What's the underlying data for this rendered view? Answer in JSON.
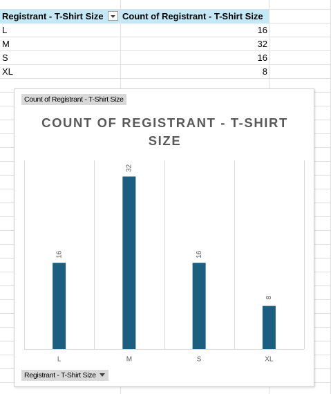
{
  "table": {
    "headers": [
      "Registrant - T-Shirt Size",
      "Count of Registrant - T-Shirt Size"
    ],
    "rows": [
      [
        "L",
        16
      ],
      [
        "M",
        32
      ],
      [
        "S",
        16
      ],
      [
        "XL",
        8
      ]
    ]
  },
  "chart_data": {
    "type": "bar",
    "title": "COUNT OF REGISTRANT - T-SHIRT SIZE",
    "value_field_button": "Count of Registrant - T-Shirt Size",
    "axis_field_button": "Registrant - T-Shirt Size",
    "categories": [
      "L",
      "M",
      "S",
      "XL"
    ],
    "values": [
      16,
      32,
      16,
      8
    ],
    "color": "#1b5e80",
    "ylim": [
      0,
      35
    ]
  }
}
